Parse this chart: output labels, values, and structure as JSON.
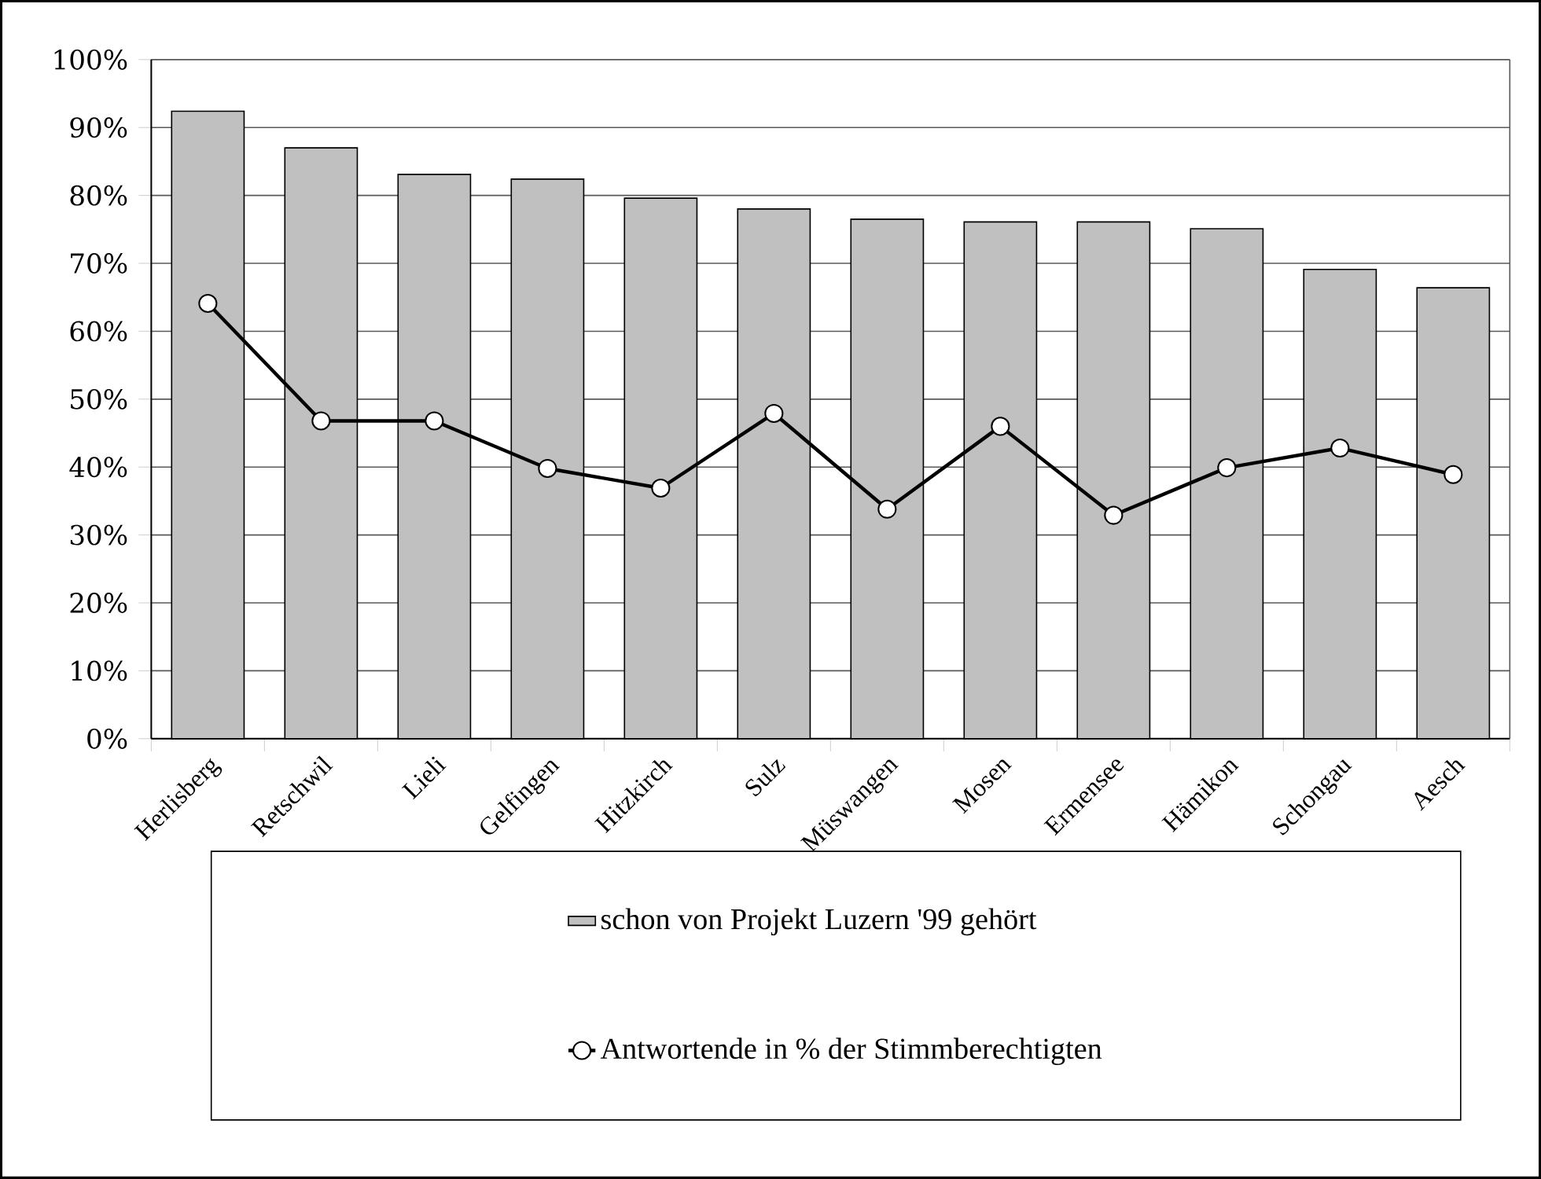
{
  "chart_data": {
    "type": "bar",
    "categories": [
      "Herlisberg",
      "Retschwil",
      "Lieli",
      "Gelfingen",
      "Hitzkirch",
      "Sulz",
      "Müswangen",
      "Mosen",
      "Ermensee",
      "Hämikon",
      "Schongau",
      "Aesch"
    ],
    "series": [
      {
        "name": "schon von Projekt Luzern '99 gehört",
        "type": "bar",
        "color": "#c0c0c0",
        "values": [
          92.4,
          87.0,
          83.1,
          82.4,
          79.6,
          78.0,
          76.5,
          76.1,
          76.1,
          75.1,
          69.1,
          66.4
        ]
      },
      {
        "name": "Antwortende in % der Stimmberechtigten",
        "type": "line",
        "color": "#000000",
        "marker": "circle",
        "values": [
          64.1,
          46.8,
          46.8,
          39.8,
          36.9,
          47.9,
          33.8,
          46.0,
          32.9,
          39.9,
          42.8,
          38.9
        ]
      }
    ],
    "ylim": [
      0,
      100
    ],
    "yticks": [
      {
        "value": 0,
        "label": "0%"
      },
      {
        "value": 10,
        "label": "10%"
      },
      {
        "value": 20,
        "label": "20%"
      },
      {
        "value": 30,
        "label": "30%"
      },
      {
        "value": 40,
        "label": "40%"
      },
      {
        "value": 50,
        "label": "50%"
      },
      {
        "value": 60,
        "label": "60%"
      },
      {
        "value": 70,
        "label": "70%"
      },
      {
        "value": 80,
        "label": "80%"
      },
      {
        "value": 90,
        "label": "90%"
      },
      {
        "value": 100,
        "label": "100%"
      }
    ],
    "grid": "y",
    "legend": "bottom"
  }
}
